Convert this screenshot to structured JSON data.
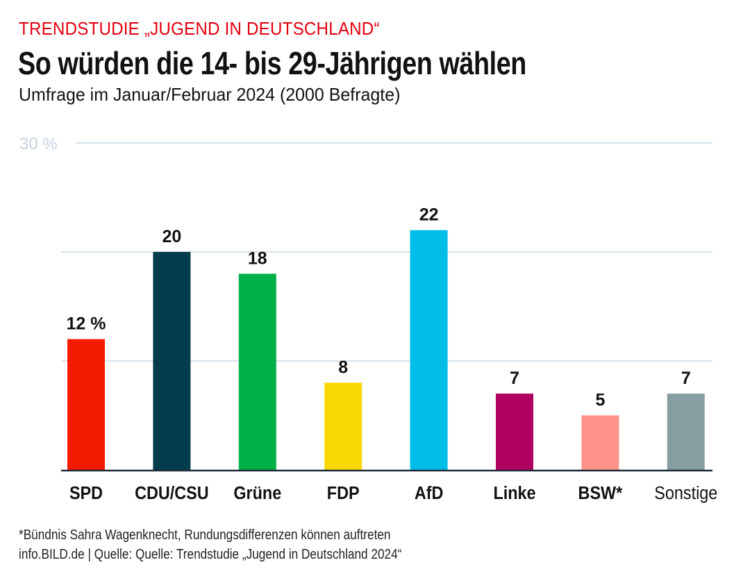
{
  "header": {
    "kicker": "TRENDSTUDIE „JUGEND IN DEUTSCHLAND“",
    "title": "So würden die 14- bis 29-Jährigen wählen",
    "subtitle": "Umfrage im Januar/Februar 2024 (2000 Befragte)"
  },
  "footer": {
    "note": "*Bündnis Sahra Wagenknecht, Rundungsdifferenzen können auftreten",
    "source": "info.BILD.de | Quelle: Quelle: Trendstudie „Jugend in Deutschland 2024“"
  },
  "chart_data": {
    "type": "bar",
    "title": "So würden die 14- bis 29-Jährigen wählen",
    "subtitle": "Umfrage im Januar/Februar 2024 (2000 Befragte)",
    "xlabel": "",
    "ylabel": "",
    "ylim": [
      0,
      30
    ],
    "yticks": [
      10,
      20,
      30
    ],
    "ytick_labels": [
      "",
      "",
      "30 %"
    ],
    "grid": true,
    "categories": [
      "SPD",
      "CDU/CSU",
      "Grüne",
      "FDP",
      "AfD",
      "Linke",
      "BSW*",
      "Sonstige"
    ],
    "values": [
      12,
      20,
      18,
      8,
      22,
      7,
      5,
      7
    ],
    "value_labels": [
      "12 %",
      "20",
      "18",
      "8",
      "22",
      "7",
      "5",
      "7"
    ],
    "colors": [
      "#f41a00",
      "#033c4c",
      "#00b048",
      "#f7d800",
      "#00bde8",
      "#b00060",
      "#ff928a",
      "#889fa1"
    ],
    "category_bold": [
      true,
      true,
      true,
      true,
      true,
      true,
      true,
      false
    ],
    "grid_color": "#c8d8e4",
    "axis_color": "#1f2c38"
  }
}
